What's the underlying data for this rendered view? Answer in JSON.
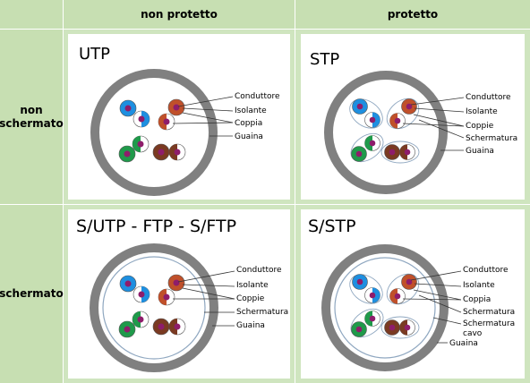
{
  "header": {
    "col1": "non protetto",
    "col2": "protetto"
  },
  "rows": {
    "row1": "non schermato",
    "row1_line1": "non",
    "row1_line2": "schermato",
    "row2": "schermato"
  },
  "panels": {
    "utp": {
      "title": "UTP",
      "labels": [
        "Conduttore",
        "Isolante",
        "Coppia",
        "Guaina"
      ]
    },
    "stp": {
      "title": "STP",
      "labels": [
        "Conduttore",
        "Isolante",
        "Coppie",
        "Schermatura",
        "Guaina"
      ]
    },
    "sutp": {
      "title": "S/UTP - FTP - S/FTP",
      "labels": [
        "Conduttore",
        "Isolante",
        "Coppie",
        "Schermatura",
        "Guaina"
      ]
    },
    "sstp": {
      "title": "S/STP",
      "labels": [
        "Conduttore",
        "Isolante",
        "Coppia",
        "Schermatura",
        "Schermatura",
        "cavo",
        "Guaina"
      ]
    }
  },
  "colors": {
    "header_bg": "#c7dfb2",
    "panel_bg": "#cfe5bf",
    "jacket": "#808080",
    "blue": "#1e8fe0",
    "orange": "#c0502a",
    "green": "#1f9a4a",
    "brown": "#7a3a22",
    "core": "#8e1d6b"
  }
}
